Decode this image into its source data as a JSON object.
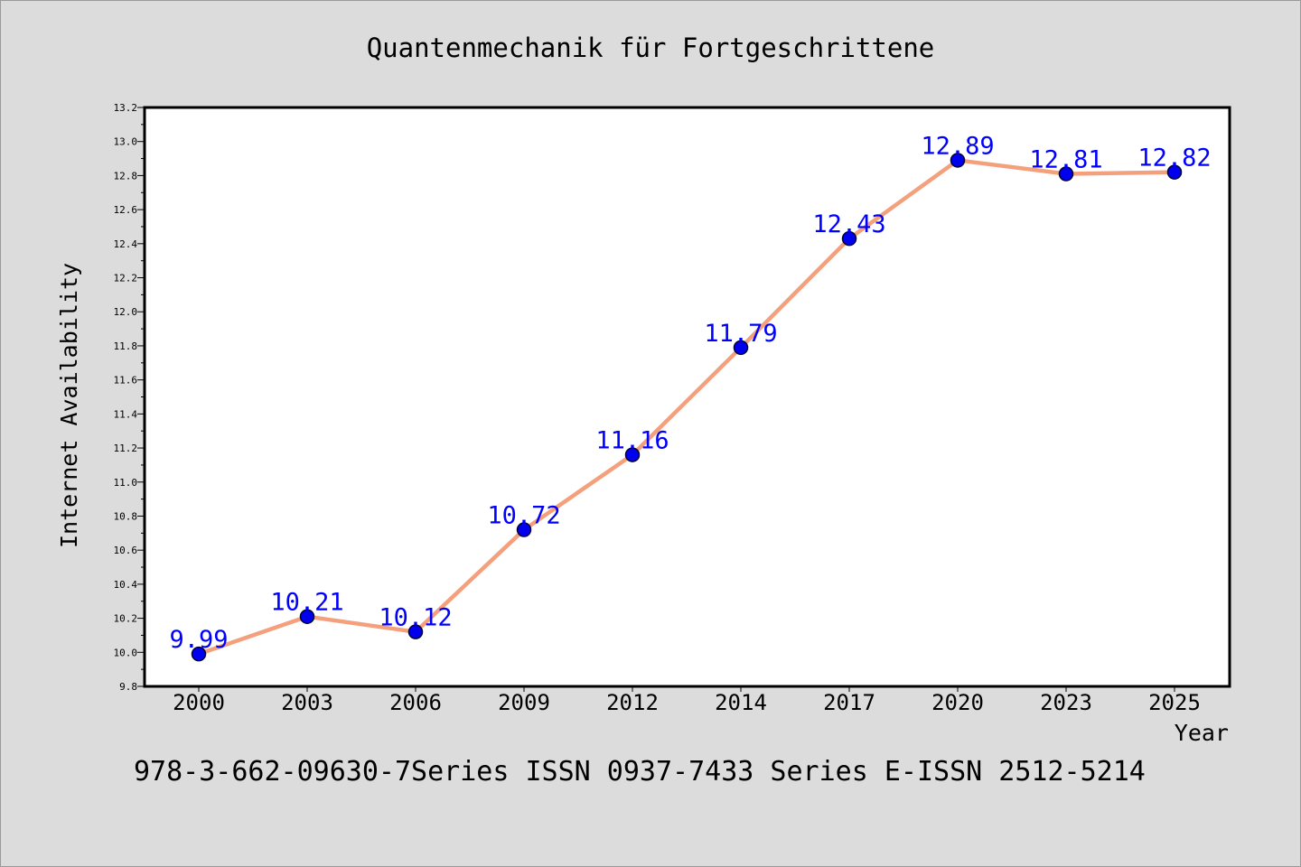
{
  "chart_data": {
    "type": "line",
    "title": "Quantenmechanik für Fortgeschrittene",
    "xlabel": "Year",
    "ylabel": "Internet Availability",
    "footer": "978-3-662-09630-7Series ISSN 0937-7433 Series E-ISSN 2512-5214",
    "categories": [
      "2000",
      "2003",
      "2006",
      "2009",
      "2012",
      "2014",
      "2017",
      "2020",
      "2023",
      "2025"
    ],
    "values": [
      9.99,
      10.21,
      10.12,
      10.72,
      11.16,
      11.79,
      12.43,
      12.89,
      12.81,
      12.82
    ],
    "data_labels": [
      "9.99",
      "10.21",
      "10.12",
      "10.72",
      "11.16",
      "11.79",
      "12.43",
      "12.89",
      "12.81",
      "12.82"
    ],
    "ylim": [
      9.8,
      13.2
    ],
    "yticks": [
      "9.8",
      "10.0",
      "10.2",
      "10.4",
      "10.6",
      "10.8",
      "11.0",
      "11.2",
      "11.4",
      "11.6",
      "11.8",
      "12.0",
      "12.2",
      "12.4",
      "12.6",
      "12.8",
      "13.0",
      "13.2"
    ],
    "grid": false,
    "colors": {
      "line": "#f4a07c",
      "marker": "#0000ee",
      "marker_edge": "#000033",
      "data_label": "#0000ff",
      "background": "#dcdcdc",
      "plot_background": "#ffffff"
    }
  }
}
